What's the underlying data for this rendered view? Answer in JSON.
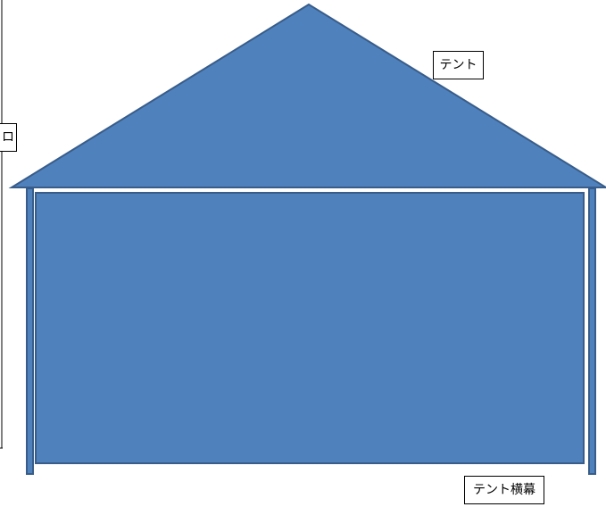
{
  "labels": {
    "tent": "テント",
    "tent_banner": "テント横幕",
    "cutoff_label": "ロ"
  },
  "colors": {
    "fill": "#4f81bd",
    "stroke": "#385d8a",
    "line": "#000000",
    "background": "#ffffff"
  }
}
